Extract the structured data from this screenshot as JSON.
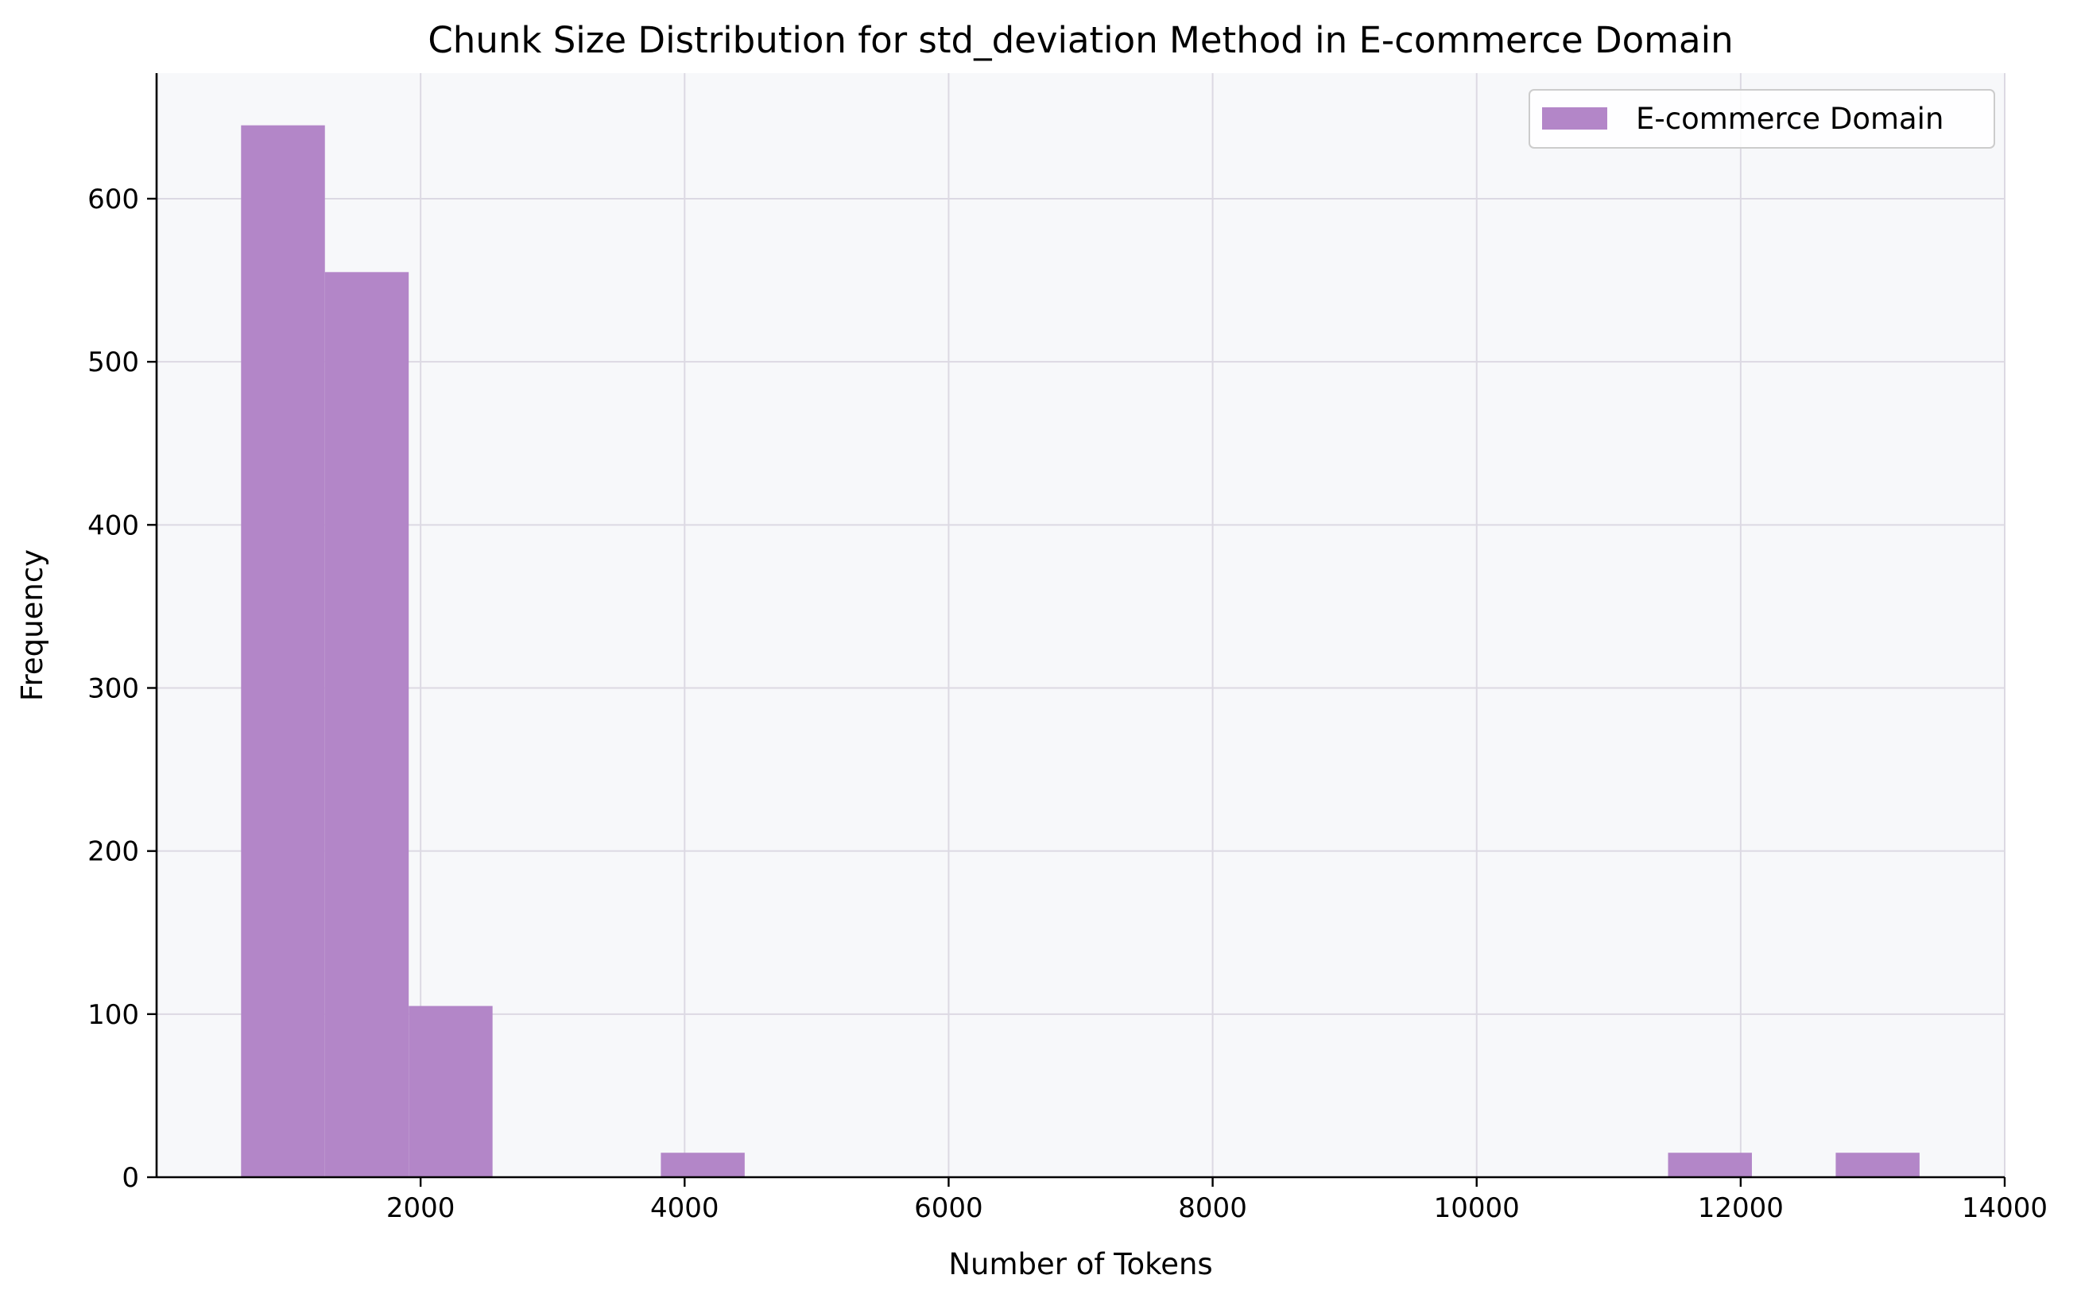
{
  "chart_data": {
    "type": "bar",
    "title": "Chunk Size Distribution for std_deviation Method in E-commerce Domain",
    "xlabel": "Number of Tokens",
    "ylabel": "Frequency",
    "xlim": [
      0,
      14000
    ],
    "ylim": [
      0,
      677
    ],
    "x_ticks": [
      2000,
      4000,
      6000,
      8000,
      10000,
      12000,
      14000
    ],
    "y_ticks": [
      0,
      100,
      200,
      300,
      400,
      500,
      600
    ],
    "grid": true,
    "legend_position": "top-right",
    "series": [
      {
        "name": "E-commerce Domain",
        "color": "#B386C8",
        "bins": [
          {
            "x0": 640,
            "x1": 1275,
            "count": 645
          },
          {
            "x0": 1275,
            "x1": 1910,
            "count": 555
          },
          {
            "x0": 1910,
            "x1": 2545,
            "count": 105
          },
          {
            "x0": 3820,
            "x1": 4455,
            "count": 15
          },
          {
            "x0": 11450,
            "x1": 12085,
            "count": 15
          },
          {
            "x0": 12720,
            "x1": 13355,
            "count": 15
          }
        ]
      }
    ]
  },
  "colors": {
    "plot_background": "#F7F8FA",
    "grid": "#DCD9E3",
    "bar": "#B386C8"
  }
}
